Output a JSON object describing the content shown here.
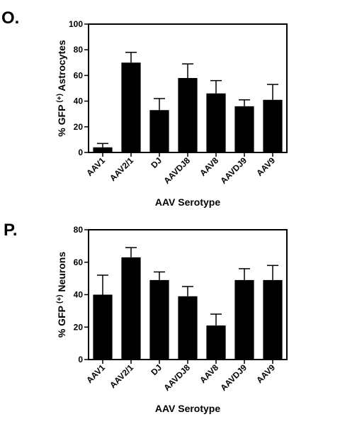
{
  "chart_data": [
    {
      "type": "bar",
      "panel_label": "O.",
      "categories": [
        "AAV1",
        "AAV2/1",
        "DJ",
        "AAVDJ8",
        "AAV8",
        "AAVDJ9",
        "AAV9"
      ],
      "values": [
        4,
        70,
        33,
        58,
        46,
        36,
        41
      ],
      "error": [
        3,
        8,
        9,
        11,
        10,
        5,
        12
      ],
      "ylabel_pre": "% GFP",
      "ylabel_sup": "(+)",
      "ylabel_post": " Astrocytes",
      "xlabel": "AAV Serotype",
      "ylim": [
        0,
        100
      ],
      "yticks": [
        0,
        20,
        40,
        60,
        80,
        100
      ],
      "bar_color": "#000000",
      "grid": false
    },
    {
      "type": "bar",
      "panel_label": "P.",
      "categories": [
        "AAV1",
        "AAV2/1",
        "DJ",
        "AAVDJ8",
        "AAV8",
        "AAVDJ9",
        "AAV9"
      ],
      "values": [
        40,
        63,
        49,
        39,
        21,
        49,
        49
      ],
      "error": [
        12,
        6,
        5,
        6,
        7,
        7,
        9
      ],
      "ylabel_pre": "% GFP",
      "ylabel_sup": "(+)",
      "ylabel_post": " Neurons",
      "xlabel": "AAV Serotype",
      "ylim": [
        0,
        80
      ],
      "yticks": [
        0,
        20,
        40,
        60,
        80
      ],
      "bar_color": "#000000",
      "grid": false
    }
  ]
}
